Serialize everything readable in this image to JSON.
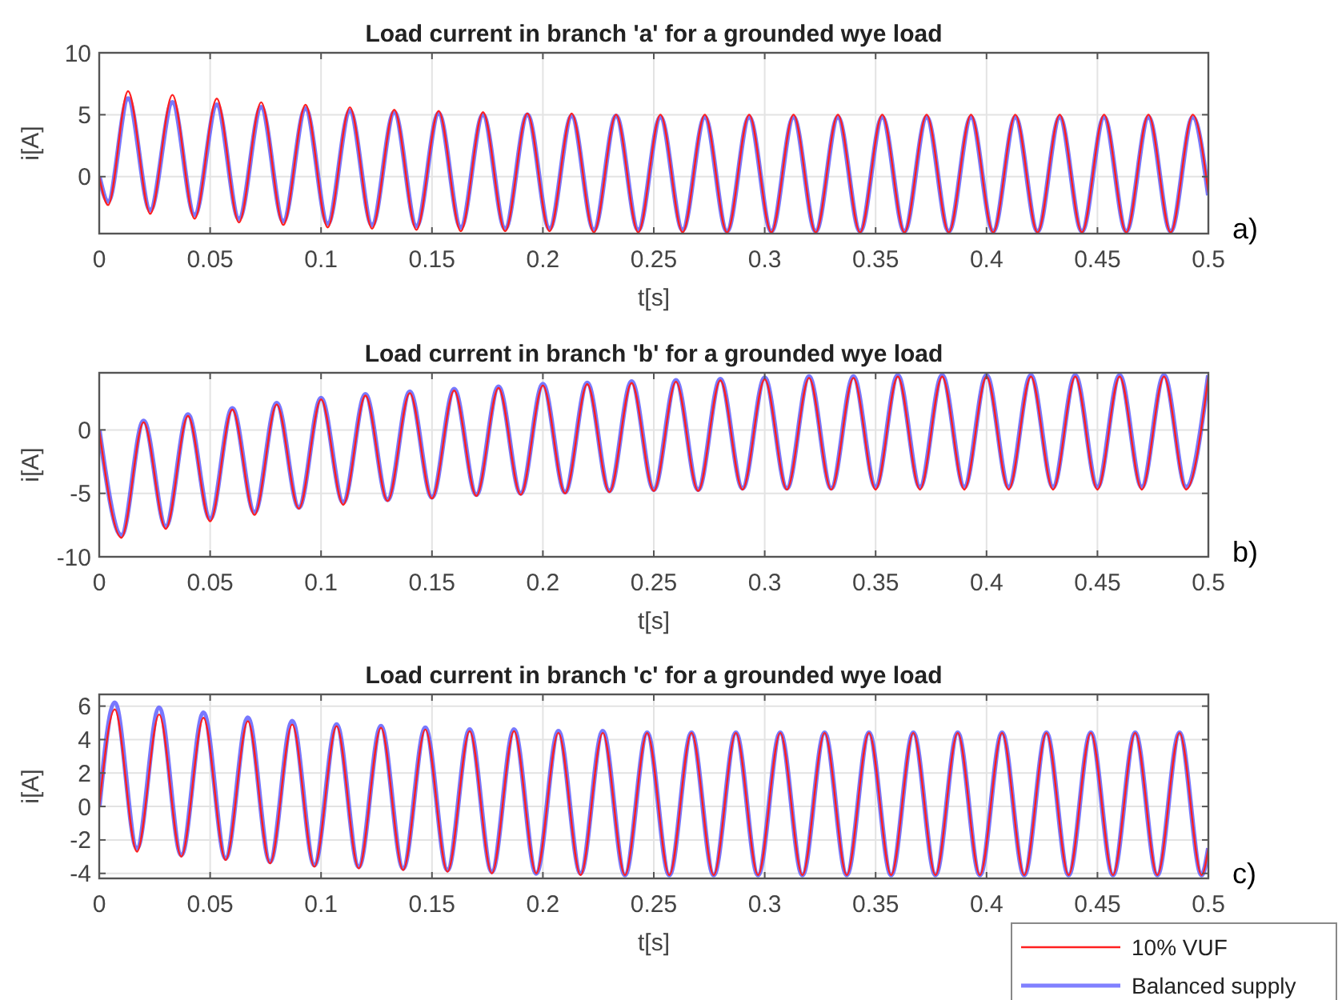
{
  "chart_data": [
    {
      "type": "line",
      "title": "Load current in branch 'a' for a grounded wye load",
      "xlabel": "t[s]",
      "ylabel": "i[A]",
      "annotations": [
        "a)"
      ],
      "xlim": [
        0,
        0.5
      ],
      "ylim": [
        -4.6,
        10
      ],
      "xticks": [
        0,
        0.05,
        0.1,
        0.15,
        0.2,
        0.25,
        0.3,
        0.35,
        0.4,
        0.45,
        0.5
      ],
      "yticks": [
        0,
        5,
        10
      ],
      "grid": true,
      "legend": false,
      "x": [
        0,
        0.004,
        0.013,
        0.023,
        0.033,
        0.043,
        0.053,
        0.063,
        0.073,
        0.083,
        0.093,
        0.103,
        0.113,
        0.123,
        0.133,
        0.143,
        0.153,
        0.163,
        0.173,
        0.183,
        0.193,
        0.203,
        0.213,
        0.223,
        0.233,
        0.243,
        0.253,
        0.263,
        0.273,
        0.283,
        0.293,
        0.303,
        0.313,
        0.323,
        0.333,
        0.343,
        0.353,
        0.363,
        0.373,
        0.383,
        0.393,
        0.403,
        0.413,
        0.423,
        0.433,
        0.443,
        0.453,
        0.463,
        0.473,
        0.483,
        0.493,
        0.5
      ],
      "series": [
        {
          "color": "#ff2020",
          "values": [
            0,
            -2.3,
            6.9,
            -3.0,
            6.6,
            -3.4,
            6.3,
            -3.7,
            6.0,
            -3.9,
            5.8,
            -4.1,
            5.6,
            -4.2,
            5.4,
            -4.3,
            5.3,
            -4.4,
            5.2,
            -4.4,
            5.1,
            -4.4,
            5.1,
            -4.5,
            5.0,
            -4.5,
            5.0,
            -4.5,
            5.0,
            -4.5,
            5.0,
            -4.5,
            5.0,
            -4.5,
            5.0,
            -4.5,
            5.0,
            -4.5,
            5.0,
            -4.5,
            5.0,
            -4.5,
            5.0,
            -4.5,
            5.0,
            -4.5,
            5.0,
            -4.5,
            5.0,
            -4.5,
            5.0,
            -1.3
          ]
        },
        {
          "color": "#6060ff",
          "values": [
            0,
            -2.0,
            6.3,
            -2.7,
            6.0,
            -3.1,
            5.8,
            -3.4,
            5.6,
            -3.6,
            5.5,
            -3.8,
            5.3,
            -3.9,
            5.2,
            -4.0,
            5.1,
            -4.1,
            5.0,
            -4.2,
            5.0,
            -4.2,
            4.9,
            -4.3,
            4.9,
            -4.3,
            4.8,
            -4.3,
            4.8,
            -4.4,
            4.8,
            -4.4,
            4.8,
            -4.4,
            4.8,
            -4.4,
            4.8,
            -4.4,
            4.8,
            -4.4,
            4.8,
            -4.4,
            4.8,
            -4.4,
            4.8,
            -4.4,
            4.8,
            -4.4,
            4.8,
            -4.4,
            4.8,
            -1.5
          ]
        }
      ]
    },
    {
      "type": "line",
      "title": "Load current in branch 'b' for a grounded wye load",
      "xlabel": "t[s]",
      "ylabel": "i[A]",
      "annotations": [
        "b)"
      ],
      "xlim": [
        0,
        0.5
      ],
      "ylim": [
        -10,
        4.5
      ],
      "xticks": [
        0,
        0.05,
        0.1,
        0.15,
        0.2,
        0.25,
        0.3,
        0.35,
        0.4,
        0.45,
        0.5
      ],
      "yticks": [
        -10,
        -5,
        0
      ],
      "grid": true,
      "legend": false,
      "x": [
        0,
        0.01,
        0.02,
        0.03,
        0.04,
        0.05,
        0.06,
        0.07,
        0.08,
        0.09,
        0.1,
        0.11,
        0.12,
        0.13,
        0.14,
        0.15,
        0.16,
        0.17,
        0.18,
        0.19,
        0.2,
        0.21,
        0.22,
        0.23,
        0.24,
        0.25,
        0.26,
        0.27,
        0.28,
        0.29,
        0.3,
        0.31,
        0.32,
        0.33,
        0.34,
        0.35,
        0.36,
        0.37,
        0.38,
        0.39,
        0.4,
        0.41,
        0.42,
        0.43,
        0.44,
        0.45,
        0.46,
        0.47,
        0.48,
        0.49,
        0.5
      ],
      "series": [
        {
          "color": "#ff2020",
          "values": [
            0,
            -8.5,
            0.6,
            -7.8,
            1.1,
            -7.2,
            1.6,
            -6.7,
            2.0,
            -6.2,
            2.4,
            -5.9,
            2.7,
            -5.6,
            2.9,
            -5.4,
            3.1,
            -5.2,
            3.3,
            -5.1,
            3.5,
            -5.0,
            3.6,
            -4.9,
            3.7,
            -4.8,
            3.8,
            -4.8,
            3.9,
            -4.7,
            4.0,
            -4.7,
            4.1,
            -4.7,
            4.1,
            -4.7,
            4.2,
            -4.7,
            4.2,
            -4.7,
            4.2,
            -4.7,
            4.2,
            -4.7,
            4.2,
            -4.7,
            4.2,
            -4.7,
            4.2,
            -4.7,
            4.2
          ]
        },
        {
          "color": "#6060ff",
          "values": [
            0,
            -8.3,
            0.7,
            -7.6,
            1.2,
            -7.0,
            1.7,
            -6.5,
            2.1,
            -6.1,
            2.5,
            -5.7,
            2.8,
            -5.5,
            3.0,
            -5.3,
            3.2,
            -5.1,
            3.4,
            -5.0,
            3.6,
            -4.9,
            3.7,
            -4.8,
            3.8,
            -4.7,
            3.9,
            -4.7,
            4.0,
            -4.6,
            4.1,
            -4.6,
            4.2,
            -4.6,
            4.2,
            -4.5,
            4.3,
            -4.5,
            4.3,
            -4.5,
            4.3,
            -4.5,
            4.3,
            -4.5,
            4.3,
            -4.5,
            4.3,
            -4.5,
            4.3,
            -4.5,
            4.3
          ]
        }
      ]
    },
    {
      "type": "line",
      "title": "Load current in branch 'c' for a grounded wye load",
      "xlabel": "t[s]",
      "ylabel": "i[A]",
      "annotations": [
        "c)"
      ],
      "xlim": [
        0,
        0.5
      ],
      "ylim": [
        -4.3,
        6.7
      ],
      "xticks": [
        0,
        0.05,
        0.1,
        0.15,
        0.2,
        0.25,
        0.3,
        0.35,
        0.4,
        0.45,
        0.5
      ],
      "yticks": [
        -4,
        -2,
        0,
        2,
        4,
        6
      ],
      "grid": true,
      "legend": "bottom right",
      "x": [
        0,
        0.007,
        0.017,
        0.027,
        0.037,
        0.047,
        0.057,
        0.067,
        0.077,
        0.087,
        0.097,
        0.107,
        0.117,
        0.127,
        0.137,
        0.147,
        0.157,
        0.167,
        0.177,
        0.187,
        0.197,
        0.207,
        0.217,
        0.227,
        0.237,
        0.247,
        0.257,
        0.267,
        0.277,
        0.287,
        0.297,
        0.307,
        0.317,
        0.327,
        0.337,
        0.347,
        0.357,
        0.367,
        0.377,
        0.387,
        0.397,
        0.407,
        0.417,
        0.427,
        0.437,
        0.447,
        0.457,
        0.467,
        0.477,
        0.487,
        0.497,
        0.5
      ],
      "series": [
        {
          "name": "10% VUF",
          "color": "#ff2020",
          "values": [
            0,
            5.8,
            -2.7,
            5.5,
            -3.0,
            5.3,
            -3.2,
            5.1,
            -3.4,
            4.9,
            -3.6,
            4.8,
            -3.7,
            4.7,
            -3.8,
            4.6,
            -3.9,
            4.5,
            -4.0,
            4.5,
            -4.0,
            4.4,
            -4.1,
            4.4,
            -4.1,
            4.4,
            -4.1,
            4.4,
            -4.1,
            4.4,
            -4.1,
            4.4,
            -4.1,
            4.4,
            -4.1,
            4.4,
            -4.1,
            4.4,
            -4.1,
            4.4,
            -4.1,
            4.4,
            -4.1,
            4.4,
            -4.1,
            4.4,
            -4.1,
            4.4,
            -4.1,
            4.4,
            -4.1,
            -2.5
          ]
        },
        {
          "name": "Balanced supply",
          "color": "#6060ff",
          "values": [
            0,
            6.2,
            -2.5,
            5.9,
            -2.9,
            5.6,
            -3.1,
            5.3,
            -3.3,
            5.1,
            -3.5,
            4.9,
            -3.6,
            4.8,
            -3.7,
            4.7,
            -3.8,
            4.6,
            -3.9,
            4.6,
            -4.0,
            4.5,
            -4.0,
            4.5,
            -4.1,
            4.4,
            -4.1,
            4.4,
            -4.1,
            4.4,
            -4.1,
            4.4,
            -4.1,
            4.4,
            -4.1,
            4.4,
            -4.1,
            4.4,
            -4.1,
            4.4,
            -4.1,
            4.4,
            -4.1,
            4.4,
            -4.1,
            4.4,
            -4.1,
            4.4,
            -4.1,
            4.4,
            -4.1,
            -2.5
          ]
        }
      ]
    }
  ]
}
